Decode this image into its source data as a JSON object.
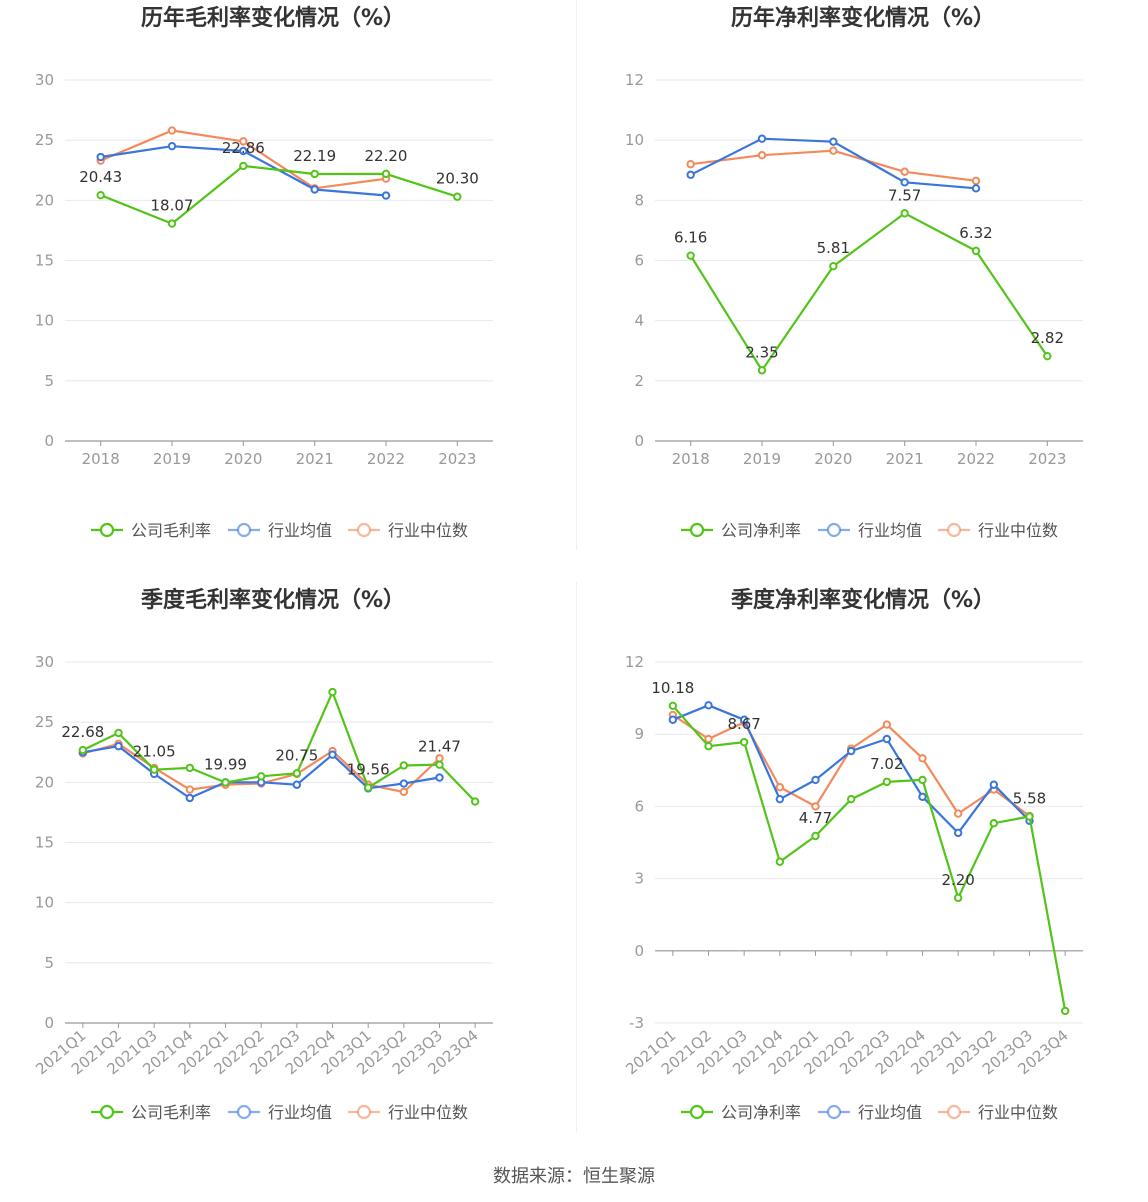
{
  "colors": {
    "company": "#52c41a",
    "avg": "#3a75dc",
    "median": "#f28a5c",
    "grid": "#e8e8ee",
    "axis": "#999999"
  },
  "source_text": "数据来源：恒生聚源",
  "chart_data": [
    {
      "type": "line",
      "title": "历年毛利率变化情况（%）",
      "categories": [
        "2018",
        "2019",
        "2020",
        "2021",
        "2022",
        "2023"
      ],
      "ylim": [
        0,
        30
      ],
      "yticks": [
        0,
        5,
        10,
        15,
        20,
        25,
        30
      ],
      "rotate_labels": false,
      "series": [
        {
          "name": "公司毛利率",
          "values": [
            20.43,
            18.07,
            22.86,
            22.19,
            22.2,
            20.3
          ],
          "labels": [
            "20.43",
            "18.07",
            "22.86",
            "22.19",
            "22.20",
            "20.30"
          ]
        },
        {
          "name": "行业均值",
          "values": [
            23.6,
            24.5,
            24.1,
            20.9,
            20.4,
            null
          ]
        },
        {
          "name": "行业中位数",
          "values": [
            23.3,
            25.8,
            24.9,
            21.0,
            21.8,
            null
          ]
        }
      ]
    },
    {
      "type": "line",
      "title": "历年净利率变化情况（%）",
      "categories": [
        "2018",
        "2019",
        "2020",
        "2021",
        "2022",
        "2023"
      ],
      "ylim": [
        0,
        12
      ],
      "yticks": [
        0,
        2,
        4,
        6,
        8,
        10,
        12
      ],
      "rotate_labels": false,
      "series": [
        {
          "name": "公司净利率",
          "values": [
            6.16,
            2.35,
            5.81,
            7.57,
            6.32,
            2.82
          ],
          "labels": [
            "6.16",
            "2.35",
            "5.81",
            "7.57",
            "6.32",
            "2.82"
          ]
        },
        {
          "name": "行业均值",
          "values": [
            8.85,
            10.05,
            9.95,
            8.6,
            8.4,
            null
          ]
        },
        {
          "name": "行业中位数",
          "values": [
            9.2,
            9.5,
            9.65,
            8.95,
            8.65,
            null
          ]
        }
      ]
    },
    {
      "type": "line",
      "title": "季度毛利率变化情况（%）",
      "categories": [
        "2021Q1",
        "2021Q2",
        "2021Q3",
        "2021Q4",
        "2022Q1",
        "2022Q2",
        "2022Q3",
        "2022Q4",
        "2023Q1",
        "2023Q2",
        "2023Q3",
        "2023Q4"
      ],
      "ylim": [
        0,
        30
      ],
      "yticks": [
        0,
        5,
        10,
        15,
        20,
        25,
        30
      ],
      "rotate_labels": true,
      "series": [
        {
          "name": "公司毛利率",
          "values": [
            22.68,
            24.1,
            21.05,
            21.2,
            19.99,
            20.5,
            20.75,
            27.5,
            19.56,
            21.4,
            21.47,
            18.4
          ],
          "labels": [
            "22.68",
            "",
            "21.05",
            "",
            "19.99",
            "",
            "20.75",
            "",
            "19.56",
            "",
            "21.47",
            ""
          ]
        },
        {
          "name": "行业均值",
          "values": [
            22.5,
            23.0,
            20.7,
            18.7,
            20.0,
            20.0,
            19.8,
            22.3,
            19.5,
            19.9,
            20.4,
            null
          ]
        },
        {
          "name": "行业中位数",
          "values": [
            22.4,
            23.2,
            21.2,
            19.4,
            19.8,
            19.9,
            20.7,
            22.6,
            19.8,
            19.2,
            22.0,
            null
          ]
        }
      ]
    },
    {
      "type": "line",
      "title": "季度净利率变化情况（%）",
      "categories": [
        "2021Q1",
        "2021Q2",
        "2021Q3",
        "2021Q4",
        "2022Q1",
        "2022Q2",
        "2022Q3",
        "2022Q4",
        "2023Q1",
        "2023Q2",
        "2023Q3",
        "2023Q4"
      ],
      "ylim": [
        -3,
        12
      ],
      "yticks": [
        -3,
        0,
        3,
        6,
        9,
        12
      ],
      "rotate_labels": true,
      "series": [
        {
          "name": "公司净利率",
          "values": [
            10.18,
            8.5,
            8.67,
            3.7,
            4.77,
            6.3,
            7.02,
            7.1,
            2.2,
            5.3,
            5.58,
            -2.5
          ],
          "labels": [
            "10.18",
            "",
            "8.67",
            "",
            "4.77",
            "",
            "7.02",
            "",
            "2.20",
            "",
            "5.58",
            ""
          ]
        },
        {
          "name": "行业均值",
          "values": [
            9.6,
            10.2,
            9.6,
            6.3,
            7.1,
            8.3,
            8.8,
            6.4,
            4.9,
            6.9,
            5.4,
            null
          ]
        },
        {
          "name": "行业中位数",
          "values": [
            9.8,
            8.8,
            9.5,
            6.8,
            6.0,
            8.4,
            9.4,
            8.0,
            5.7,
            6.7,
            5.6,
            null
          ]
        }
      ]
    }
  ]
}
